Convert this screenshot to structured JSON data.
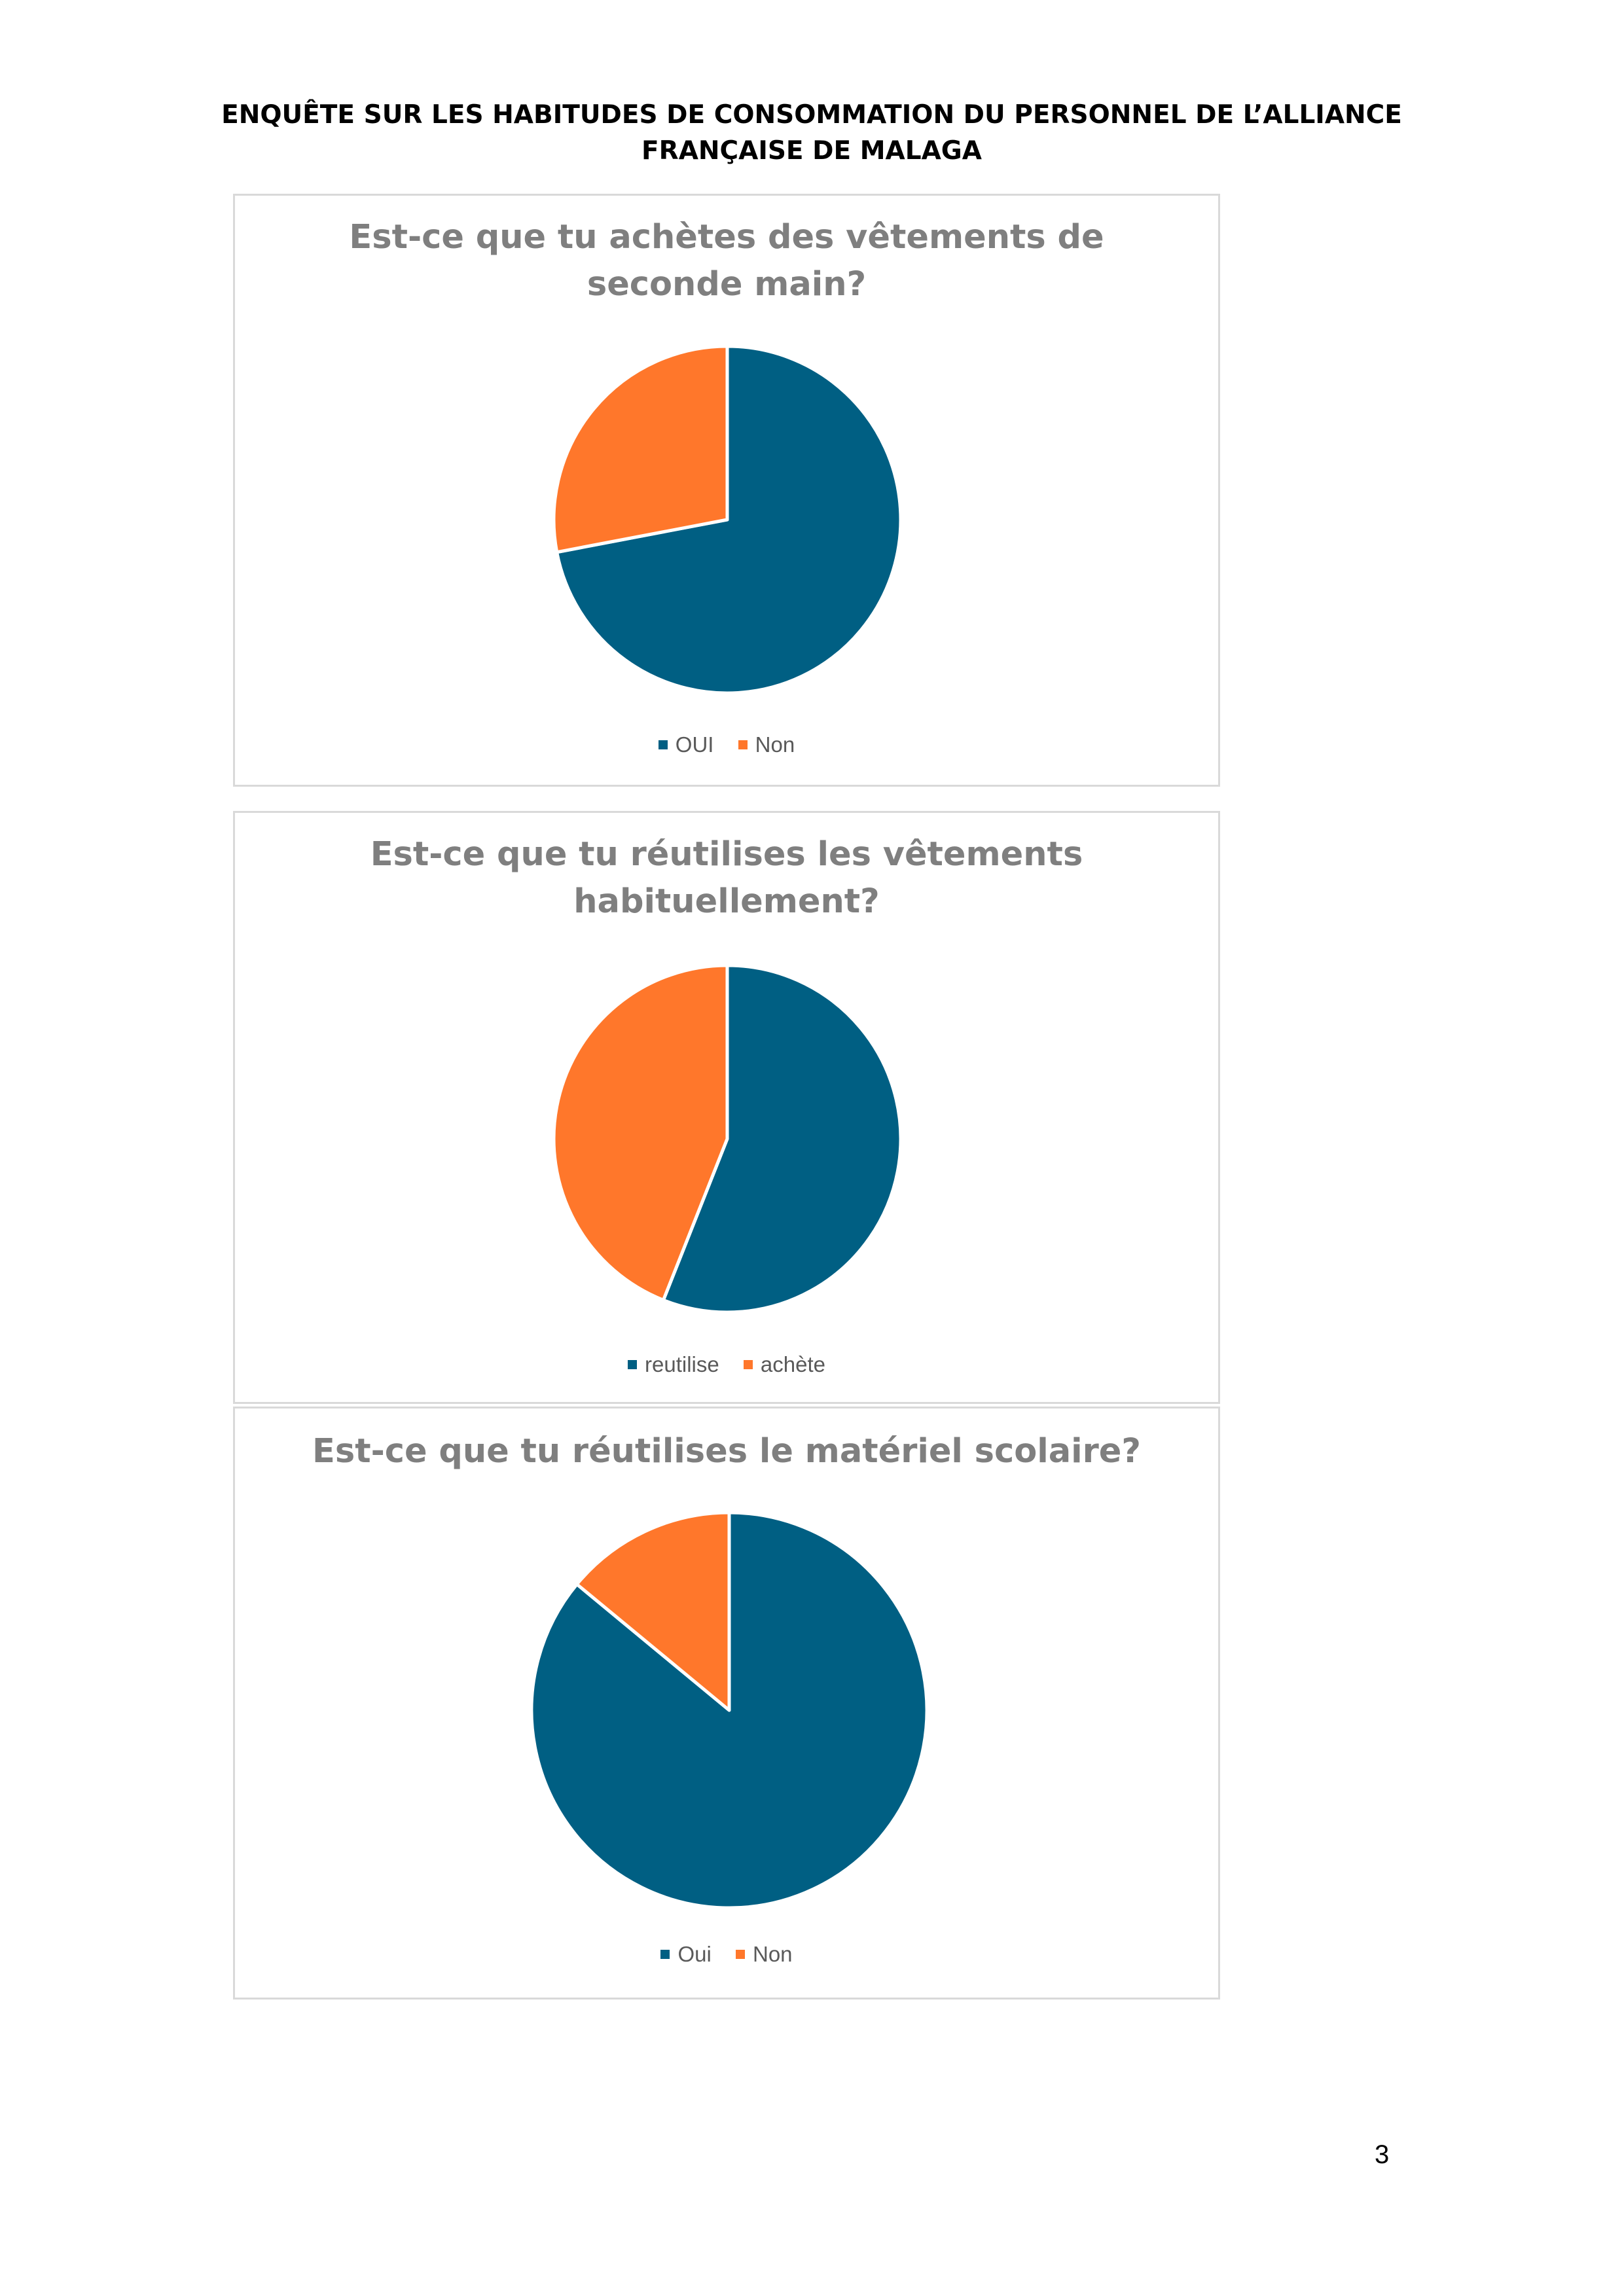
{
  "document": {
    "title_lines": [
      "ENQUÊTE SUR LES HABITUDES DE CONSOMMATION DU PERSONNEL DE L’ALLIANCE",
      "FRANÇAISE DE MALAGA"
    ],
    "page_number": "3"
  },
  "colors": {
    "blue": "#005f83",
    "orange": "#ff772b",
    "slice_border": "#ffffff"
  },
  "chart_data": [
    {
      "type": "pie",
      "title_lines": [
        "Est-ce que tu achètes des vêtements de",
        "seconde main?"
      ],
      "categories": [
        "OUI",
        "Non"
      ],
      "values": [
        72,
        28
      ],
      "legend_position": "bottom"
    },
    {
      "type": "pie",
      "title_lines": [
        "Est-ce que tu réutilises les vêtements",
        "habituellement?"
      ],
      "categories": [
        "reutilise",
        "achète"
      ],
      "values": [
        56,
        44
      ],
      "legend_position": "bottom"
    },
    {
      "type": "pie",
      "title_lines": [
        "Est-ce que tu réutilises le matériel scolaire?"
      ],
      "categories": [
        "Oui",
        "Non"
      ],
      "values": [
        86,
        14
      ],
      "legend_position": "bottom"
    }
  ]
}
